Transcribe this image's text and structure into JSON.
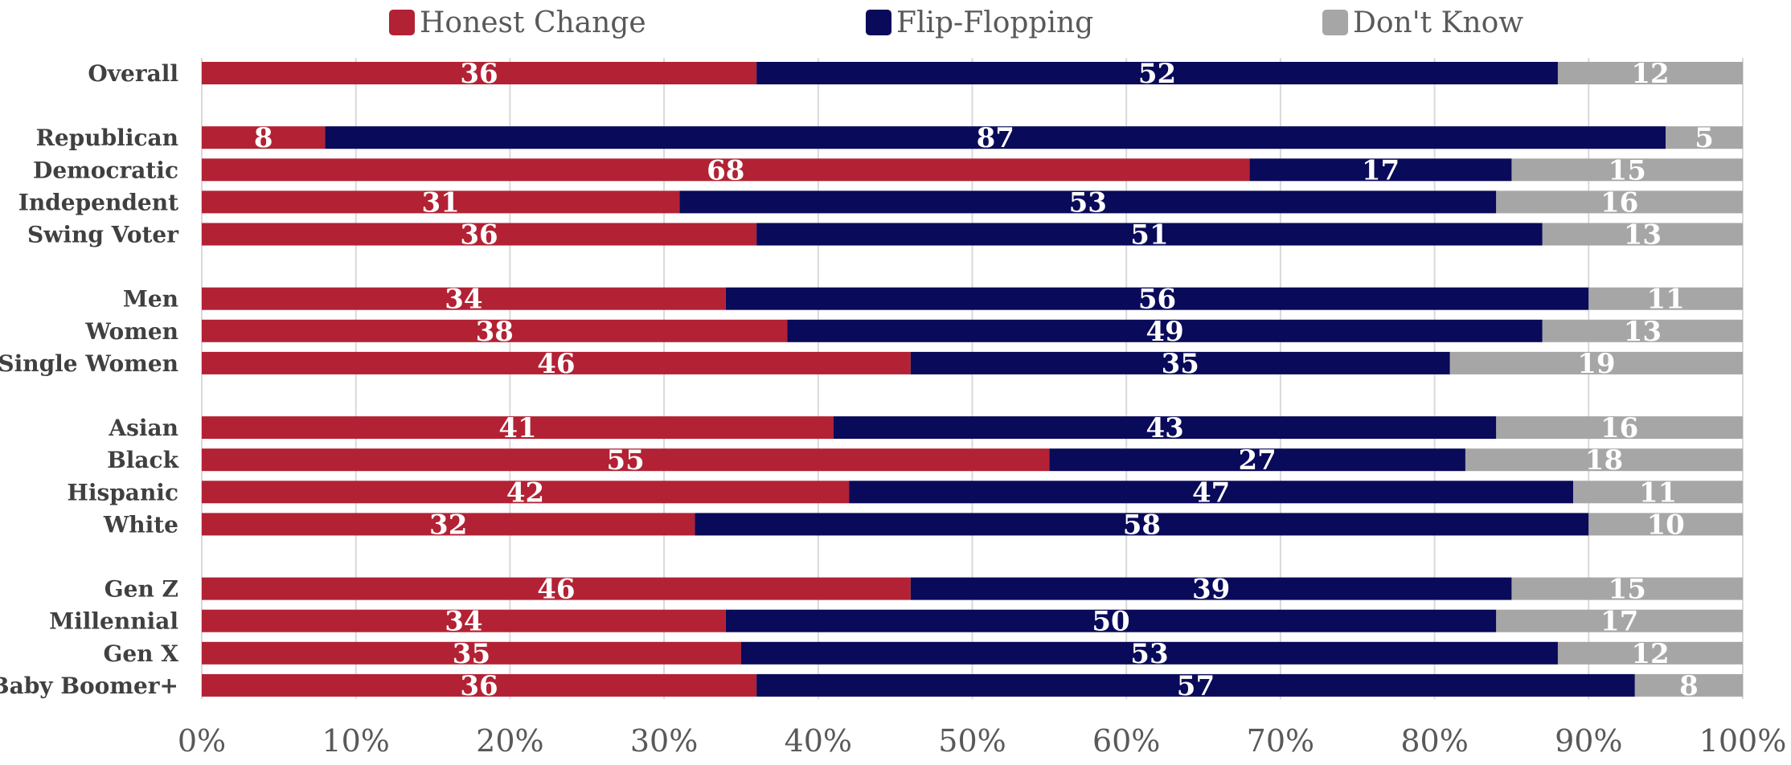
{
  "chart_data": {
    "type": "bar",
    "orientation": "horizontal",
    "stacked": true,
    "percent_stacked": true,
    "legend_position": "top",
    "grid": true,
    "xlim": [
      0,
      100
    ],
    "x_ticks": [
      "0%",
      "10%",
      "20%",
      "30%",
      "40%",
      "50%",
      "60%",
      "70%",
      "80%",
      "90%",
      "100%"
    ],
    "categories": [
      "Overall",
      "",
      "Republican",
      "Democratic",
      "Independent",
      "Swing Voter",
      "",
      "Men",
      "Women",
      "Single Women",
      "",
      "Asian",
      "Black",
      "Hispanic",
      "White",
      "",
      "Gen Z",
      "Millennial",
      "Gen X",
      "Baby Boomer+"
    ],
    "series": [
      {
        "name": "Honest Change",
        "color": "#b22234",
        "values": [
          36,
          null,
          8,
          68,
          31,
          36,
          null,
          34,
          38,
          46,
          null,
          41,
          55,
          42,
          32,
          null,
          46,
          34,
          35,
          36
        ]
      },
      {
        "name": "Flip-Flopping",
        "color": "#0a0a5a",
        "values": [
          52,
          null,
          87,
          17,
          53,
          51,
          null,
          56,
          49,
          35,
          null,
          43,
          27,
          47,
          58,
          null,
          39,
          50,
          53,
          57
        ]
      },
      {
        "name": "Don't Know",
        "color": "#a6a6a6",
        "values": [
          12,
          null,
          5,
          15,
          16,
          13,
          null,
          11,
          13,
          19,
          null,
          16,
          18,
          11,
          10,
          null,
          15,
          17,
          12,
          8
        ]
      }
    ]
  }
}
